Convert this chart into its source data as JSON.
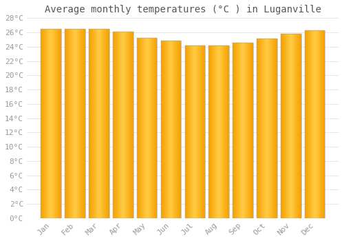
{
  "title": "Average monthly temperatures (°C ) in Luganville",
  "months": [
    "Jan",
    "Feb",
    "Mar",
    "Apr",
    "May",
    "Jun",
    "Jul",
    "Aug",
    "Sep",
    "Oct",
    "Nov",
    "Dec"
  ],
  "values": [
    26.5,
    26.5,
    26.5,
    26.1,
    25.2,
    24.8,
    24.2,
    24.2,
    24.6,
    25.1,
    25.8,
    26.3
  ],
  "bar_color_center": "#FFCC44",
  "bar_color_edge": "#F5A000",
  "bar_edge_color": "#AAAAAA",
  "background_color": "#FFFFFF",
  "grid_color": "#DDDDDD",
  "ylim": [
    0,
    28
  ],
  "yticks": [
    0,
    2,
    4,
    6,
    8,
    10,
    12,
    14,
    16,
    18,
    20,
    22,
    24,
    26,
    28
  ],
  "title_fontsize": 10,
  "tick_fontsize": 8,
  "tick_color": "#999999",
  "title_color": "#555555",
  "bar_width": 0.85
}
